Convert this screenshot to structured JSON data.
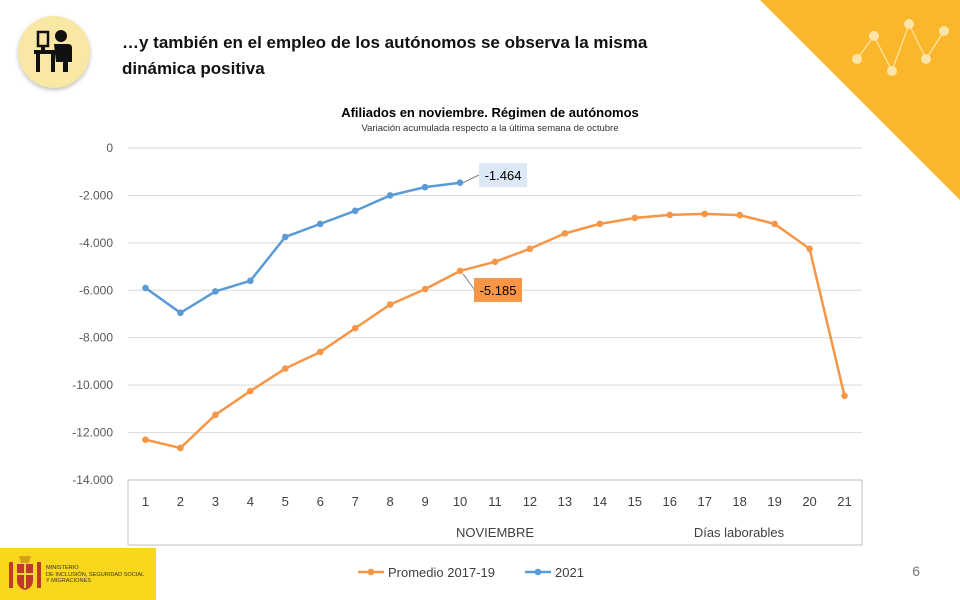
{
  "headline": "…y también en el empleo de los autónomos  se observa la misma dinámica positiva",
  "page_number": "6",
  "ministry_label": "MINISTERIO\nDE INCLUSIÓN, SEGURIDAD SOCIAL\nY MIGRACIONES",
  "icons": {
    "worker": "person-at-desk-icon",
    "ministry": "coat-of-arms-icon",
    "decoration": "zigzag-dots-icon"
  },
  "colors": {
    "accent": "#fbb72c",
    "promedio": "#f79646",
    "y2021": "#5b9bd5",
    "callout_promedio": "#f79646",
    "callout_2021": "#dbe9f7"
  },
  "chart_data": {
    "type": "line",
    "title": "Afiliados en noviembre. Régimen de autónomos",
    "subtitle": "Variación acumulada respecto a la última semana de octubre",
    "categories": [
      "1",
      "2",
      "3",
      "4",
      "5",
      "6",
      "7",
      "8",
      "9",
      "10",
      "11",
      "12",
      "13",
      "14",
      "15",
      "16",
      "17",
      "18",
      "19",
      "20",
      "21"
    ],
    "group_labels": [
      "NOVIEMBRE",
      "Días laborables"
    ],
    "ylim": [
      -14000,
      0
    ],
    "yticks": [
      0,
      -2000,
      -4000,
      -6000,
      -8000,
      -10000,
      -12000,
      -14000
    ],
    "ytick_labels": [
      "0",
      "-2.000",
      "-4.000",
      "-6.000",
      "-8.000",
      "-10.000",
      "-12.000",
      "-14.000"
    ],
    "grid": true,
    "legend_position": "bottom",
    "series": [
      {
        "name": "Promedio 2017-19",
        "values": [
          -12300,
          -12650,
          -11250,
          -10250,
          -9300,
          -8600,
          -7600,
          -6600,
          -5950,
          -5185,
          -4800,
          -4250,
          -3600,
          -3200,
          -2950,
          -2820,
          -2780,
          -2830,
          -3200,
          -4250,
          -10450
        ],
        "callout": "-5.185",
        "callout_index": 9
      },
      {
        "name": "2021",
        "values": [
          -5900,
          -6950,
          -6050,
          -5600,
          -3750,
          -3200,
          -2650,
          -2000,
          -1650,
          -1464,
          null,
          null,
          null,
          null,
          null,
          null,
          null,
          null,
          null,
          null,
          null
        ],
        "callout": "-1.464",
        "callout_index": 9
      }
    ]
  }
}
